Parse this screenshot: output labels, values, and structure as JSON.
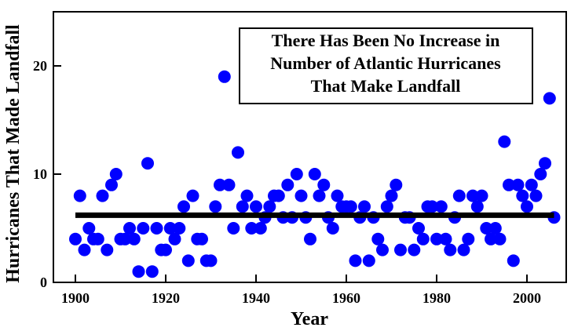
{
  "chart_data": {
    "type": "scatter",
    "title_lines": [
      "There Has Been No Increase in",
      "Number of Atlantic Hurricanes",
      "That Make Landfall"
    ],
    "xlabel": "Year",
    "ylabel": "Hurricanes That Made Landfall",
    "xlim": [
      1895,
      2008
    ],
    "ylim": [
      0,
      25
    ],
    "xticks": [
      "1900",
      "1920",
      "1940",
      "1960",
      "1980",
      "2000"
    ],
    "yticks": [
      "0",
      "10",
      "20"
    ],
    "grid": false,
    "marker_color": "#0000ff",
    "trend_color": "#000000",
    "trend_line": {
      "x": [
        1900,
        2006
      ],
      "y": [
        6.2,
        6.2
      ]
    },
    "points": [
      [
        1900,
        4
      ],
      [
        1901,
        8
      ],
      [
        1902,
        3
      ],
      [
        1903,
        5
      ],
      [
        1904,
        4
      ],
      [
        1905,
        4
      ],
      [
        1906,
        8
      ],
      [
        1907,
        3
      ],
      [
        1908,
        9
      ],
      [
        1909,
        10
      ],
      [
        1910,
        4
      ],
      [
        1911,
        4
      ],
      [
        1912,
        5
      ],
      [
        1913,
        4
      ],
      [
        1914,
        1
      ],
      [
        1915,
        5
      ],
      [
        1916,
        11
      ],
      [
        1917,
        1
      ],
      [
        1918,
        5
      ],
      [
        1919,
        3
      ],
      [
        1920,
        3
      ],
      [
        1921,
        5
      ],
      [
        1922,
        4
      ],
      [
        1923,
        5
      ],
      [
        1924,
        7
      ],
      [
        1925,
        2
      ],
      [
        1926,
        8
      ],
      [
        1927,
        4
      ],
      [
        1928,
        4
      ],
      [
        1929,
        2
      ],
      [
        1930,
        2
      ],
      [
        1931,
        7
      ],
      [
        1932,
        9
      ],
      [
        1933,
        19
      ],
      [
        1934,
        9
      ],
      [
        1935,
        5
      ],
      [
        1936,
        12
      ],
      [
        1937,
        7
      ],
      [
        1938,
        8
      ],
      [
        1939,
        5
      ],
      [
        1940,
        7
      ],
      [
        1941,
        5
      ],
      [
        1942,
        6
      ],
      [
        1943,
        7
      ],
      [
        1944,
        8
      ],
      [
        1945,
        8
      ],
      [
        1946,
        6
      ],
      [
        1947,
        9
      ],
      [
        1948,
        6
      ],
      [
        1949,
        10
      ],
      [
        1950,
        8
      ],
      [
        1951,
        6
      ],
      [
        1952,
        4
      ],
      [
        1953,
        10
      ],
      [
        1954,
        8
      ],
      [
        1955,
        9
      ],
      [
        1956,
        6
      ],
      [
        1957,
        5
      ],
      [
        1958,
        8
      ],
      [
        1959,
        7
      ],
      [
        1960,
        7
      ],
      [
        1961,
        7
      ],
      [
        1962,
        2
      ],
      [
        1963,
        6
      ],
      [
        1964,
        7
      ],
      [
        1965,
        2
      ],
      [
        1966,
        6
      ],
      [
        1967,
        4
      ],
      [
        1968,
        3
      ],
      [
        1969,
        7
      ],
      [
        1970,
        8
      ],
      [
        1971,
        9
      ],
      [
        1972,
        3
      ],
      [
        1973,
        6
      ],
      [
        1974,
        6
      ],
      [
        1975,
        3
      ],
      [
        1976,
        5
      ],
      [
        1977,
        4
      ],
      [
        1978,
        7
      ],
      [
        1979,
        7
      ],
      [
        1980,
        4
      ],
      [
        1981,
        7
      ],
      [
        1982,
        4
      ],
      [
        1983,
        3
      ],
      [
        1984,
        6
      ],
      [
        1985,
        8
      ],
      [
        1986,
        3
      ],
      [
        1987,
        4
      ],
      [
        1988,
        8
      ],
      [
        1989,
        7
      ],
      [
        1990,
        8
      ],
      [
        1991,
        5
      ],
      [
        1992,
        4
      ],
      [
        1993,
        5
      ],
      [
        1994,
        4
      ],
      [
        1995,
        13
      ],
      [
        1996,
        9
      ],
      [
        1997,
        2
      ],
      [
        1998,
        9
      ],
      [
        1999,
        8
      ],
      [
        2000,
        7
      ],
      [
        2001,
        9
      ],
      [
        2002,
        8
      ],
      [
        2003,
        10
      ],
      [
        2004,
        11
      ],
      [
        2005,
        17
      ],
      [
        2006,
        6
      ]
    ]
  }
}
